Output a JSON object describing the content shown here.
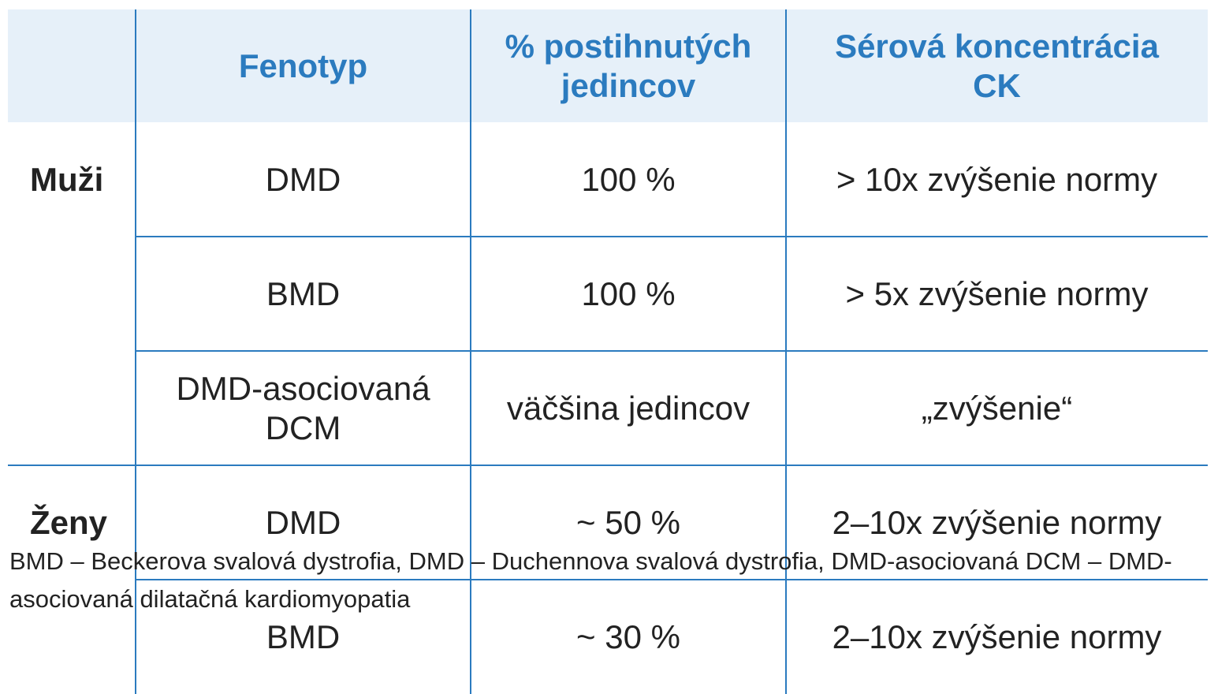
{
  "table": {
    "header": [
      "Fenotyp",
      "% postihnutých jedincov",
      "Sérová koncentrácia CK"
    ],
    "groups": [
      {
        "label": "Muži",
        "rows": [
          [
            "DMD",
            "100 %",
            "> 10x zvýšenie normy"
          ],
          [
            "BMD",
            "100 %",
            "> 5x zvýšenie normy"
          ],
          [
            "DMD-asociovaná DCM",
            "väčšina jedincov",
            "„zvýšenie“"
          ]
        ]
      },
      {
        "label": "Ženy",
        "rows": [
          [
            "DMD",
            "~ 50 %",
            "2–10x zvýšenie normy"
          ],
          [
            "BMD",
            "~ 30 %",
            "2–10x zvýšenie normy"
          ]
        ]
      }
    ]
  },
  "footnote": "BMD – Beckerova svalová dystrofia, DMD – Duchennova svalová dystrofia, DMD-asociovaná DCM – DMD-asociovaná dilatačná kardiomyopatia"
}
